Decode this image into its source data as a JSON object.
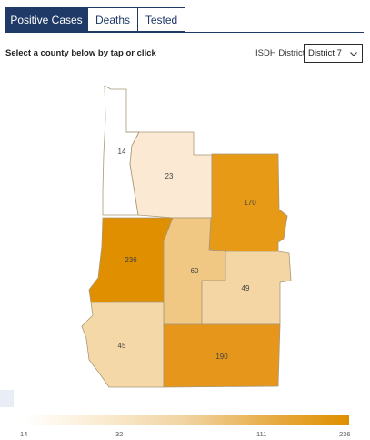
{
  "tabs": [
    {
      "label": "Positive Cases",
      "active": true
    },
    {
      "label": "Deaths",
      "active": false
    },
    {
      "label": "Tested",
      "active": false
    }
  ],
  "prompt": "Select a county below by tap or click",
  "district_filter": {
    "label": "ISDH District",
    "selected": "District 7",
    "icon": "chevron-down-icon"
  },
  "map": {
    "counties": [
      {
        "value": "14",
        "color": "#ffffff"
      },
      {
        "value": "23",
        "color": "#fbe9d3"
      },
      {
        "value": "170",
        "color": "#e69a16"
      },
      {
        "value": "236",
        "color": "#df8f00"
      },
      {
        "value": "60",
        "color": "#f0c783"
      },
      {
        "value": "49",
        "color": "#f4d6a5"
      },
      {
        "value": "45",
        "color": "#f5d8a8"
      },
      {
        "value": "190",
        "color": "#e5961b"
      }
    ]
  },
  "legend": {
    "ticks": [
      "14",
      "32",
      "111",
      "236"
    ]
  }
}
